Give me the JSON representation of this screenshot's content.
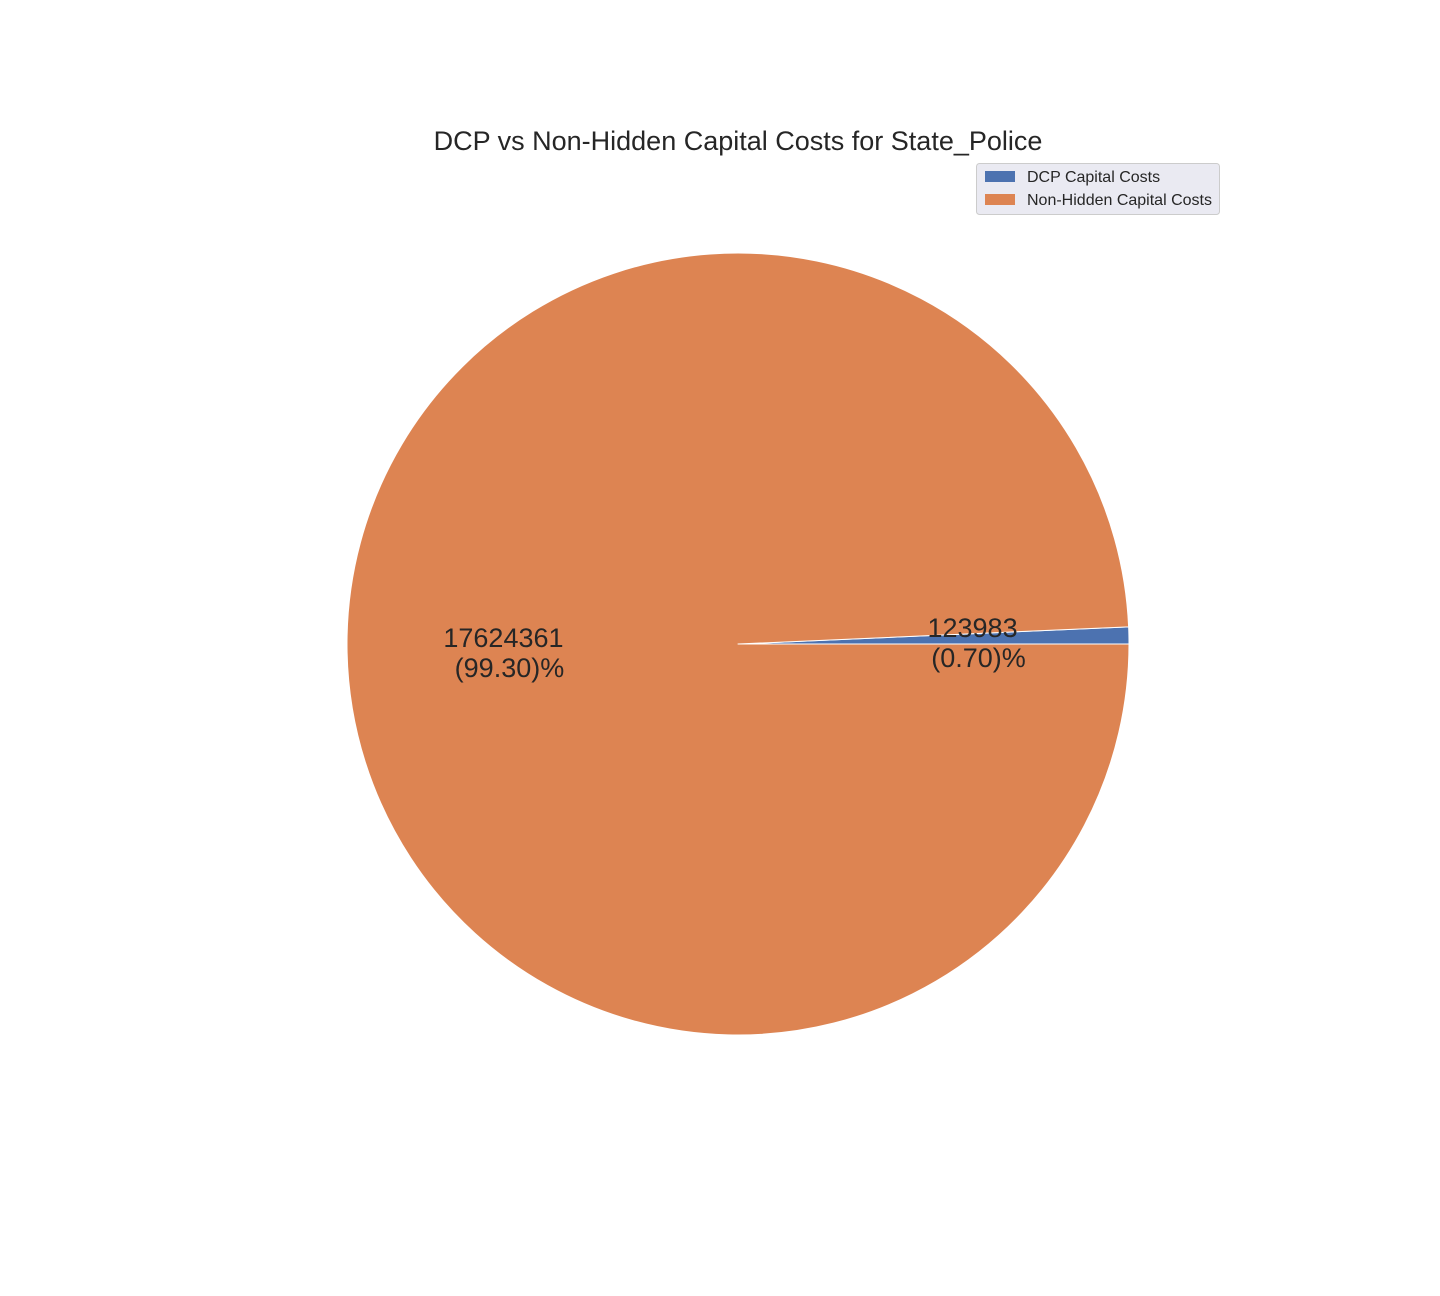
{
  "chart_data": {
    "type": "pie",
    "title": "DCP vs Non-Hidden Capital Costs for State_Police",
    "slices": [
      {
        "name": "DCP Capital Costs",
        "value": 123983,
        "label_value": "123983",
        "label_pct": "(0.70)%",
        "color": "#4c72b0"
      },
      {
        "name": "Non-Hidden Capital Costs",
        "value": 17624361,
        "label_value": "17624361",
        "label_pct": "(99.30)%",
        "color": "#dd8452"
      }
    ],
    "start_angle_deg": 0,
    "direction": "counterclockwise",
    "legend_placement": "top-right"
  }
}
